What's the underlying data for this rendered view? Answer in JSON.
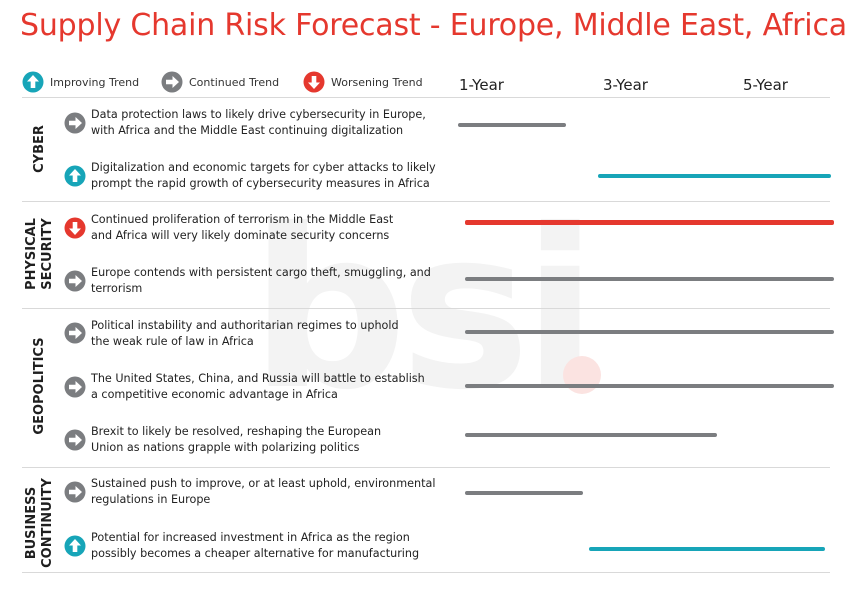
{
  "title": "Supply Chain Risk Forecast - Europe, Middle East, Africa",
  "legend": [
    {
      "label": "Improving Trend",
      "icon": "up-arrow-icon"
    },
    {
      "label": "Continued Trend",
      "icon": "right-arrow-icon"
    },
    {
      "label": "Worsening Trend",
      "icon": "down-arrow-icon"
    }
  ],
  "timeline": [
    "1-Year",
    "3-Year",
    "5-Year"
  ],
  "colors": {
    "title": "#e5382e",
    "improving": "#17a5b8",
    "continued": "#7b7d80",
    "worsening": "#e5382e"
  },
  "categories": [
    {
      "name": [
        "CYBER"
      ],
      "rows": [
        {
          "trend": "continued",
          "text": [
            "Data protection laws to likely drive cybersecurity in Europe,",
            "with Africa and the Middle East continuing digitalization"
          ],
          "span": [
            "1-Year",
            "1-Year"
          ]
        },
        {
          "trend": "improving",
          "text": [
            "Digitalization and economic targets for cyber attacks to likely",
            "prompt the rapid growth of cybersecurity measures in Africa"
          ],
          "span": [
            "3-Year",
            "5-Year"
          ]
        }
      ]
    },
    {
      "name": [
        "PHYSICAL",
        "SECURITY"
      ],
      "rows": [
        {
          "trend": "worsening",
          "text": [
            "Continued proliferation of terrorism in the Middle East",
            "and Africa will very likely dominate security concerns"
          ],
          "span": [
            "1-Year",
            "5-Year"
          ]
        },
        {
          "trend": "continued",
          "text": [
            "Europe contends with persistent cargo theft, smuggling, and",
            "terrorism"
          ],
          "span": [
            "1-Year",
            "5-Year"
          ]
        }
      ]
    },
    {
      "name": [
        "GEOPOLITICS"
      ],
      "rows": [
        {
          "trend": "continued",
          "text": [
            "Political instability and authoritarian regimes to uphold",
            "the weak rule of law in Africa"
          ],
          "span": [
            "1-Year",
            "5-Year"
          ]
        },
        {
          "trend": "continued",
          "text": [
            "The United States, China, and Russia will battle to establish",
            "a competitive economic advantage in Africa"
          ],
          "span": [
            "1-Year",
            "5-Year"
          ]
        },
        {
          "trend": "continued",
          "text": [
            "Brexit to likely be resolved, reshaping the European",
            "Union as nations grapple with polarizing politics"
          ],
          "span": [
            "1-Year",
            "3-Year"
          ]
        }
      ]
    },
    {
      "name": [
        "BUSINESS",
        "CONTINUITY"
      ],
      "rows": [
        {
          "trend": "continued",
          "text": [
            "Sustained push to improve, or at least uphold, environmental",
            "regulations in Europe"
          ],
          "span": [
            "1-Year",
            "1-Year"
          ]
        },
        {
          "trend": "improving",
          "text": [
            "Potential for increased investment in Africa as the region",
            "possibly becomes a cheaper alternative for manufacturing"
          ],
          "span": [
            "3-Year",
            "5-Year"
          ]
        }
      ]
    }
  ],
  "watermark": "bsi"
}
